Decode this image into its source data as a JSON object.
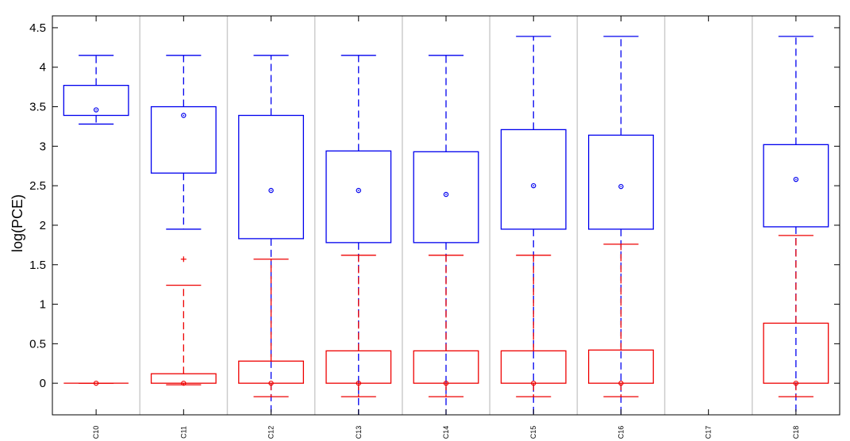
{
  "chart_data": {
    "type": "box",
    "ylabel": "log(PCE)",
    "xlabel": "",
    "ylim": [
      -0.4,
      4.65
    ],
    "yticks": [
      0,
      0.5,
      1,
      1.5,
      2,
      2.5,
      3,
      3.5,
      4,
      4.5
    ],
    "ytick_labels": [
      "0",
      "0.5",
      "1",
      "1.5",
      "2",
      "2.5",
      "3",
      "3.5",
      "4",
      "4.5"
    ],
    "grid": "vertical separators between groups",
    "categories": [
      "C10",
      "C11",
      "C12",
      "C13",
      "C14",
      "C15",
      "C16",
      "C17",
      "C18"
    ],
    "series": [
      {
        "color": "#0000ee",
        "boxes": [
          {
            "category": "C10",
            "low": 3.28,
            "q1": 3.39,
            "mean": 3.46,
            "q3": 3.77,
            "high": 4.15
          },
          {
            "category": "C11",
            "low": 1.95,
            "q1": 2.66,
            "mean": 3.39,
            "q3": 3.5,
            "high": 4.15
          },
          {
            "category": "C12",
            "low": -0.4,
            "q1": 1.83,
            "mean": 2.44,
            "q3": 3.39,
            "high": 4.15
          },
          {
            "category": "C13",
            "low": -0.4,
            "q1": 1.78,
            "mean": 2.44,
            "q3": 2.94,
            "high": 4.15
          },
          {
            "category": "C14",
            "low": -0.4,
            "q1": 1.78,
            "mean": 2.39,
            "q3": 2.93,
            "high": 4.15
          },
          {
            "category": "C15",
            "low": -0.4,
            "q1": 1.95,
            "mean": 2.5,
            "q3": 3.21,
            "high": 4.39
          },
          {
            "category": "C16",
            "low": -0.4,
            "q1": 1.95,
            "mean": 2.49,
            "q3": 3.14,
            "high": 4.39
          },
          {
            "category": "C18",
            "low": -0.4,
            "q1": 1.98,
            "mean": 2.58,
            "q3": 3.02,
            "high": 4.39
          }
        ]
      },
      {
        "color": "#ee0000",
        "boxes": [
          {
            "category": "C10",
            "low": 0,
            "q1": 0,
            "mean": 0,
            "q3": 0,
            "high": 0
          },
          {
            "category": "C11",
            "low": -0.02,
            "q1": 0,
            "mean": 0,
            "q3": 0.12,
            "high": 1.24,
            "outliers": [
              1.57
            ]
          },
          {
            "category": "C12",
            "low": -0.17,
            "q1": 0,
            "mean": 0,
            "q3": 0.28,
            "high": 1.57
          },
          {
            "category": "C13",
            "low": -0.17,
            "q1": 0,
            "mean": 0,
            "q3": 0.41,
            "high": 1.62
          },
          {
            "category": "C14",
            "low": -0.17,
            "q1": 0,
            "mean": 0,
            "q3": 0.41,
            "high": 1.62
          },
          {
            "category": "C15",
            "low": -0.17,
            "q1": 0,
            "mean": 0,
            "q3": 0.41,
            "high": 1.62
          },
          {
            "category": "C16",
            "low": -0.17,
            "q1": 0,
            "mean": 0,
            "q3": 0.42,
            "high": 1.76
          },
          {
            "category": "C18",
            "low": -0.17,
            "q1": 0,
            "mean": 0,
            "q3": 0.76,
            "high": 1.87
          }
        ]
      }
    ]
  }
}
